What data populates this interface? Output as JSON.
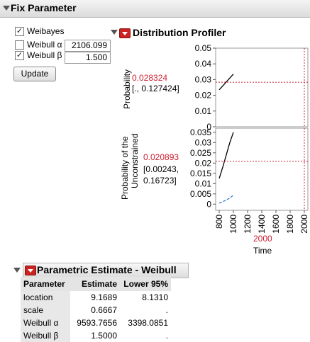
{
  "fix_parameter": {
    "title": "Fix Parameter",
    "weibayes": {
      "label": "Weibayes",
      "checked": true
    },
    "alpha": {
      "label": "Weibull α",
      "checked": false,
      "value": "2106.099"
    },
    "beta": {
      "label": "Weibull β",
      "checked": true,
      "value": "1.500"
    },
    "update_label": "Update"
  },
  "profiler": {
    "title": "Distribution Profiler",
    "x_current": "2000",
    "x_axis_label": "Time",
    "x_ticks": [
      "800",
      "1000",
      "1200",
      "1400",
      "1600",
      "1800",
      "2000"
    ],
    "panel1": {
      "ylabel": "Probability",
      "value": "0.028324",
      "ci": "[., 0.127424]",
      "y_ticks": [
        "0",
        "0.01",
        "0.02",
        "0.03",
        "0.04",
        "0.05"
      ]
    },
    "panel2": {
      "ylabel_line1": "Probability of the",
      "ylabel_line2": "Unconstrained",
      "value": "0.020893",
      "ci_line1": "[0.00243,",
      "ci_line2": "0.16723]",
      "y_ticks": [
        "0",
        "0.005",
        "0.01",
        "0.015",
        "0.02",
        "0.025",
        "0.03",
        "0.035"
      ]
    }
  },
  "chart_data": [
    {
      "type": "line",
      "title": "",
      "ylabel": "Probability",
      "xlabel": "Time",
      "xlim": [
        750,
        2050
      ],
      "ylim": [
        0,
        0.05
      ],
      "series": [
        {
          "x": [
            800,
            850,
            900,
            950,
            1000
          ],
          "y": [
            0.0235,
            0.026,
            0.0285,
            0.031,
            0.0335
          ]
        }
      ],
      "reference": {
        "x": 2000,
        "y": 0.028324
      }
    },
    {
      "type": "line",
      "title": "",
      "ylabel": "Probability of the Unconstrained",
      "xlabel": "Time",
      "xlim": [
        750,
        2050
      ],
      "ylim": [
        -0.003,
        0.037
      ],
      "series": [
        {
          "x": [
            800,
            850,
            900,
            950,
            1000
          ],
          "y": [
            0.0125,
            0.018,
            0.024,
            0.03,
            0.035
          ]
        },
        {
          "x": [
            800,
            850,
            900,
            950,
            1000
          ],
          "y": [
            0.0005,
            0.0012,
            0.002,
            0.003,
            0.0043
          ]
        }
      ],
      "reference": {
        "x": 2000,
        "y": 0.020893
      }
    }
  ],
  "estimates": {
    "title": "Parametric Estimate - Weibull",
    "headers": [
      "Parameter",
      "Estimate",
      "Lower 95%"
    ],
    "rows": [
      [
        "location",
        "9.1689",
        "8.1310"
      ],
      [
        "scale",
        "0.6667",
        "."
      ],
      [
        "Weibull α",
        "9593.7656",
        "3398.0851"
      ],
      [
        "Weibull β",
        "1.5000",
        "."
      ]
    ]
  },
  "colors": {
    "accent_red": "#cc2233",
    "curve": "#000000",
    "ci_curve": "#3a7fd0"
  }
}
